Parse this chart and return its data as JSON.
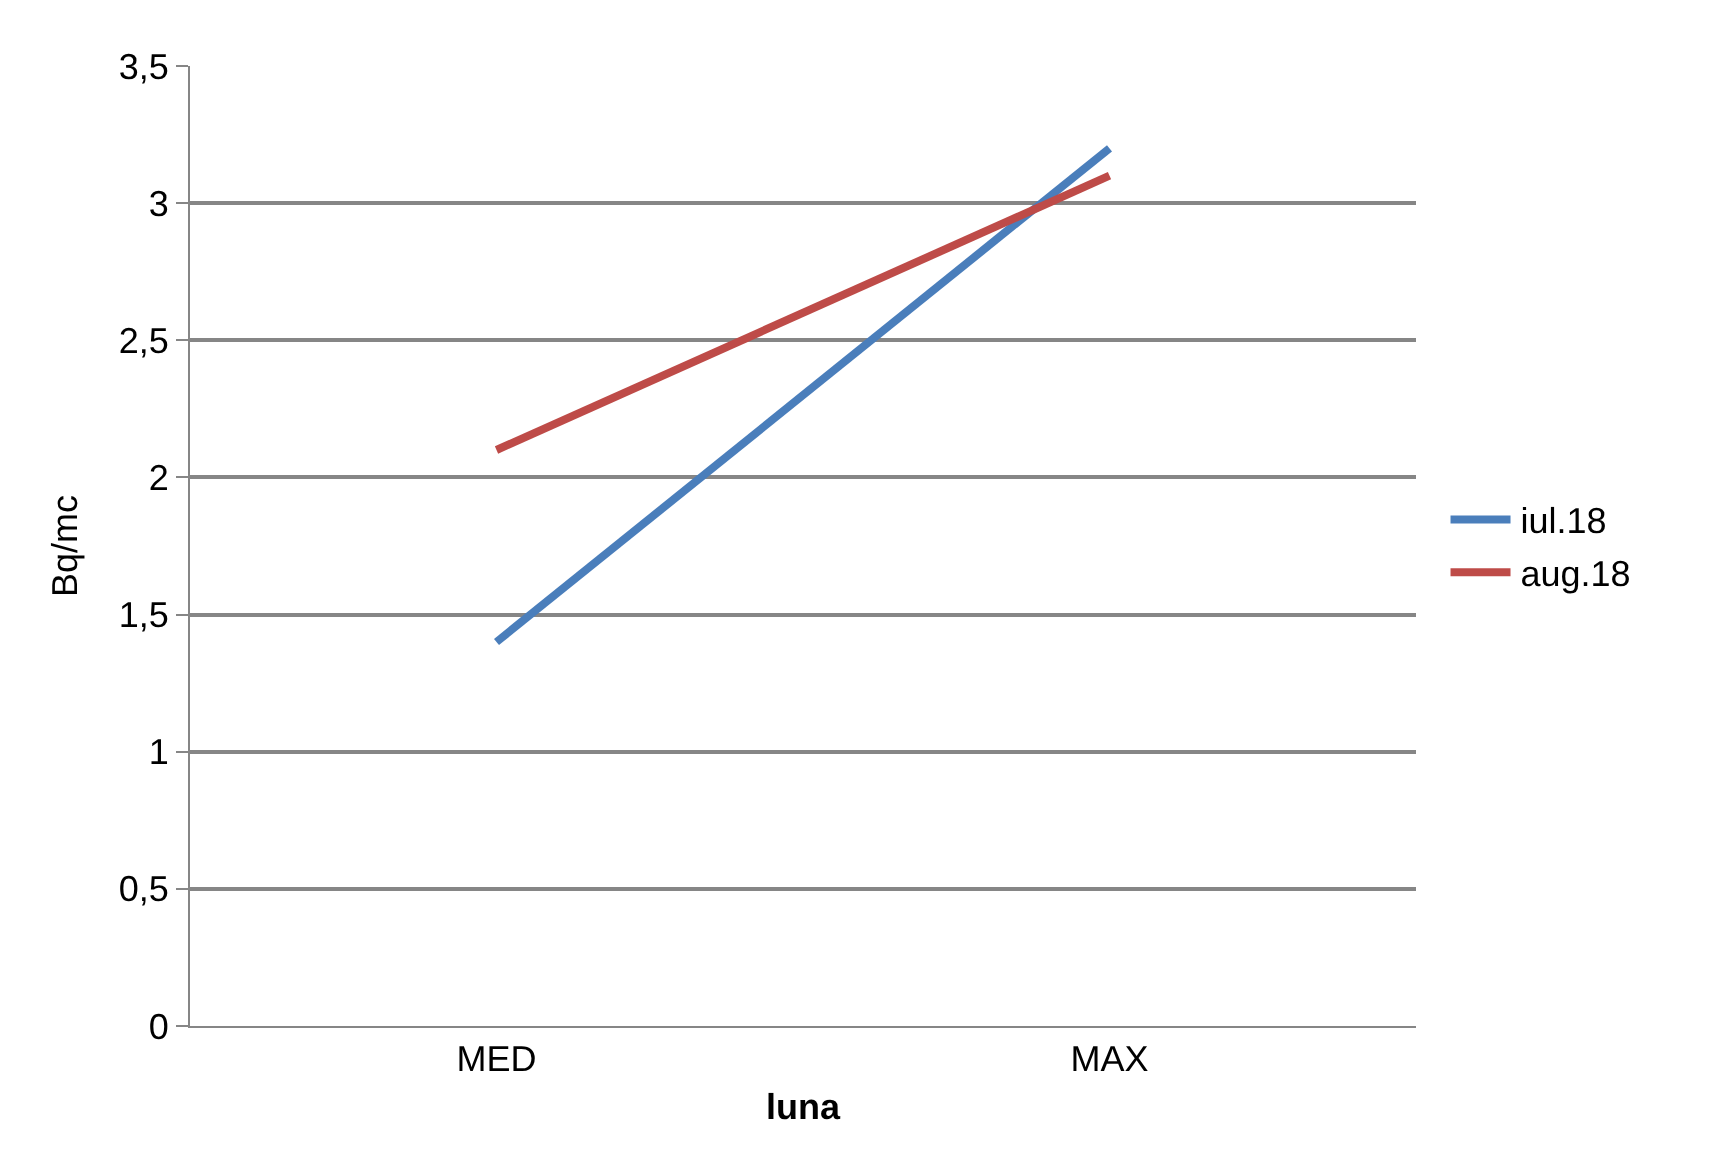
{
  "chart_data": {
    "type": "line",
    "xlabel": "luna",
    "ylabel": "Bq/mc",
    "categories": [
      "MED",
      "MAX"
    ],
    "series": [
      {
        "name": "iul.18",
        "color": "#4a7ebb",
        "values": [
          1.4,
          3.2
        ]
      },
      {
        "name": "aug.18",
        "color": "#be4b48",
        "values": [
          2.1,
          3.1
        ]
      }
    ],
    "ylim": [
      0,
      3.5
    ],
    "yticks": [
      0,
      {
        "value": 0.5,
        "label": "0,5"
      },
      1,
      {
        "value": 1.5,
        "label": "1,5"
      },
      2,
      {
        "value": 2.5,
        "label": "2,5"
      },
      3,
      {
        "value": 3.5,
        "label": "3,5"
      }
    ],
    "grid": "y",
    "legend": "right",
    "marker": "none",
    "line_style": "solid"
  }
}
